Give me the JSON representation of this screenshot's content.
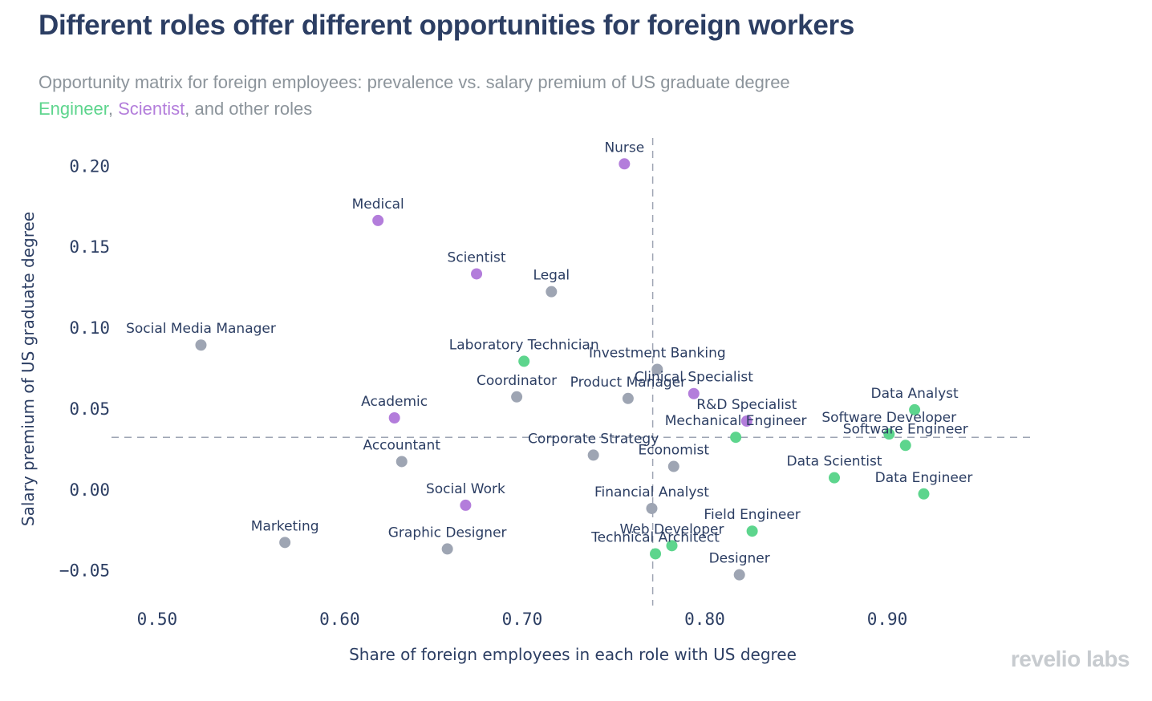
{
  "title": "Different roles offer different opportunities for foreign workers",
  "subtitle": "Opportunity matrix for foreign employees: prevalence vs. salary premium of US graduate degree",
  "legend": {
    "engineer": "Engineer",
    "sep1": ", ",
    "scientist": "Scientist",
    "rest": ", and other roles"
  },
  "watermark": "revelio labs",
  "colors": {
    "engineer": "#5dd58d",
    "scientist": "#b37ddb",
    "other": "#9ea5b3",
    "text": "#2c3e63",
    "reference_line": "#9ea5b3"
  },
  "chart_data": {
    "type": "scatter",
    "title": "Different roles offer different opportunities for foreign workers",
    "xlabel": "Share of foreign employees in each role with US degree",
    "ylabel": "Salary premium of US graduate degree",
    "xlim": [
      0.475,
      0.98
    ],
    "ylim": [
      -0.072,
      0.218
    ],
    "x_ticks": [
      0.5,
      0.6,
      0.7,
      0.8,
      0.9
    ],
    "x_tick_labels": [
      "0.50",
      "0.60",
      "0.70",
      "0.80",
      "0.90"
    ],
    "y_ticks": [
      -0.05,
      0.0,
      0.05,
      0.1,
      0.15,
      0.2
    ],
    "y_tick_labels": [
      "−0.05",
      "0.00",
      "0.05",
      "0.10",
      "0.15",
      "0.20"
    ],
    "grid": false,
    "reference_lines": {
      "x": 0.7715,
      "y": 0.032
    },
    "points": [
      {
        "label": "Nurse",
        "x": 0.756,
        "y": 0.201,
        "group": "scientist"
      },
      {
        "label": "Medical",
        "x": 0.621,
        "y": 0.166,
        "group": "scientist"
      },
      {
        "label": "Scientist",
        "x": 0.675,
        "y": 0.133,
        "group": "scientist"
      },
      {
        "label": "Legal",
        "x": 0.716,
        "y": 0.122,
        "group": "other"
      },
      {
        "label": "Social Media Manager",
        "x": 0.524,
        "y": 0.089,
        "group": "other"
      },
      {
        "label": "Laboratory Technician",
        "x": 0.701,
        "y": 0.079,
        "group": "engineer"
      },
      {
        "label": "Investment Banking",
        "x": 0.774,
        "y": 0.074,
        "group": "other"
      },
      {
        "label": "Coordinator",
        "x": 0.697,
        "y": 0.057,
        "group": "other"
      },
      {
        "label": "Product Manager",
        "x": 0.758,
        "y": 0.056,
        "group": "other"
      },
      {
        "label": "Clinical Specialist",
        "x": 0.794,
        "y": 0.059,
        "group": "scientist"
      },
      {
        "label": "R&D Specialist",
        "x": 0.823,
        "y": 0.042,
        "group": "scientist"
      },
      {
        "label": "Mechanical Engineer",
        "x": 0.817,
        "y": 0.032,
        "group": "engineer"
      },
      {
        "label": "Academic",
        "x": 0.63,
        "y": 0.044,
        "group": "scientist"
      },
      {
        "label": "Data Analyst",
        "x": 0.915,
        "y": 0.049,
        "group": "engineer"
      },
      {
        "label": "Software Developer",
        "x": 0.901,
        "y": 0.034,
        "group": "engineer"
      },
      {
        "label": "Software Engineer",
        "x": 0.91,
        "y": 0.027,
        "group": "engineer"
      },
      {
        "label": "Corporate Strategy",
        "x": 0.739,
        "y": 0.021,
        "group": "other"
      },
      {
        "label": "Economist",
        "x": 0.783,
        "y": 0.014,
        "group": "other"
      },
      {
        "label": "Accountant",
        "x": 0.634,
        "y": 0.017,
        "group": "other"
      },
      {
        "label": "Data Scientist",
        "x": 0.871,
        "y": 0.007,
        "group": "engineer"
      },
      {
        "label": "Data Engineer",
        "x": 0.92,
        "y": -0.003,
        "group": "engineer"
      },
      {
        "label": "Social Work",
        "x": 0.669,
        "y": -0.01,
        "group": "scientist"
      },
      {
        "label": "Financial Analyst",
        "x": 0.771,
        "y": -0.012,
        "group": "other"
      },
      {
        "label": "Field Engineer",
        "x": 0.826,
        "y": -0.026,
        "group": "engineer"
      },
      {
        "label": "Marketing",
        "x": 0.57,
        "y": -0.033,
        "group": "other"
      },
      {
        "label": "Graphic Designer",
        "x": 0.659,
        "y": -0.037,
        "group": "other"
      },
      {
        "label": "Web Developer",
        "x": 0.782,
        "y": -0.035,
        "group": "engineer"
      },
      {
        "label": "Technical Architect",
        "x": 0.773,
        "y": -0.04,
        "group": "engineer"
      },
      {
        "label": "Designer",
        "x": 0.819,
        "y": -0.053,
        "group": "other"
      }
    ]
  }
}
